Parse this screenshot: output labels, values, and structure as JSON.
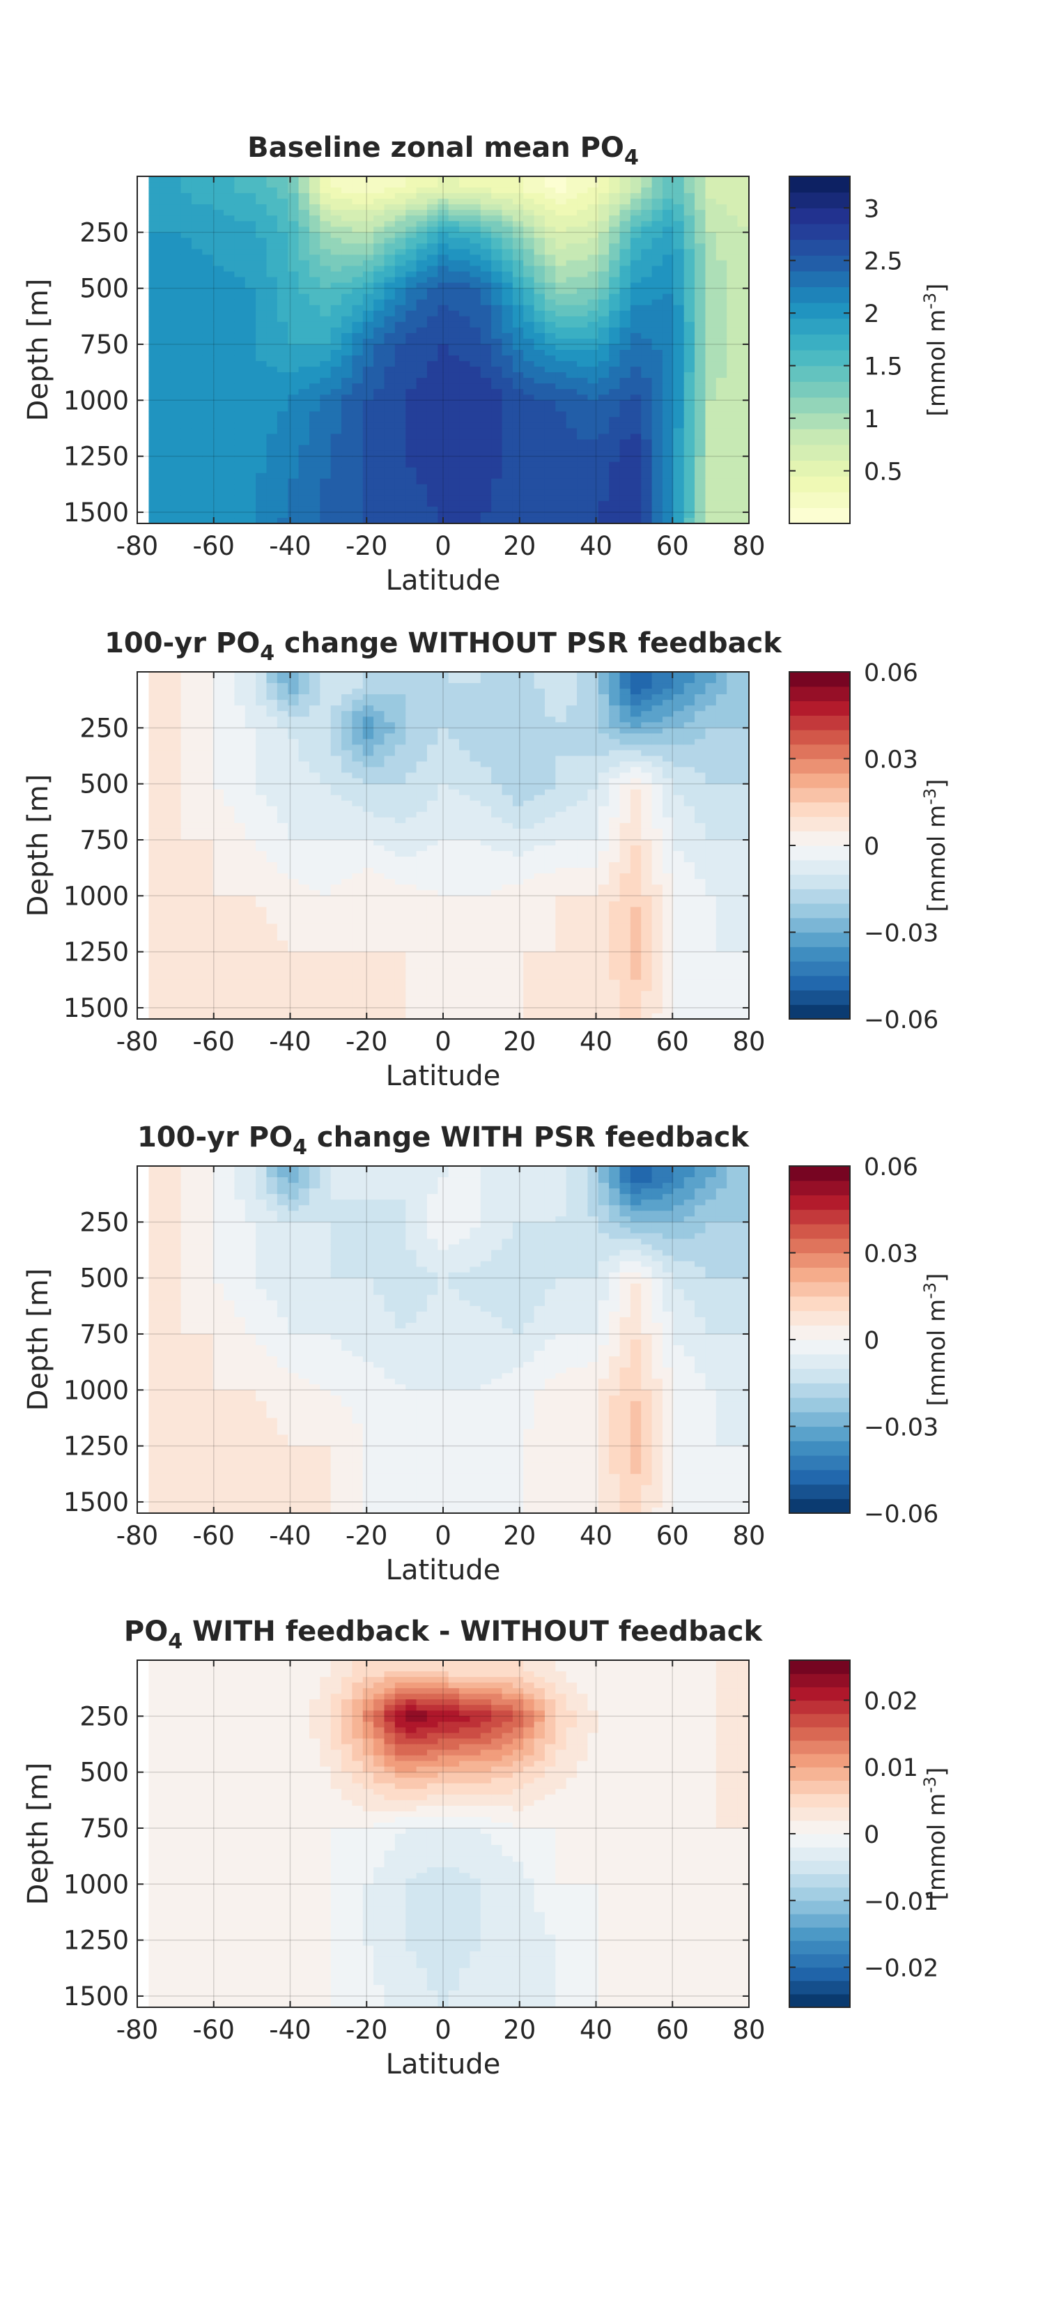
{
  "chart_data": [
    {
      "type": "heatmap",
      "title_parts": [
        "Baseline zonal mean PO",
        "4",
        ""
      ],
      "xlabel": "Latitude",
      "ylabel": "Depth [m]",
      "xlim": [
        -80,
        80
      ],
      "ylim": [
        1550,
        0
      ],
      "xticks": [
        -80,
        -60,
        -40,
        -20,
        0,
        20,
        40,
        60,
        80
      ],
      "yticks": [
        250,
        500,
        750,
        1000,
        1250,
        1500
      ],
      "grid": true,
      "colormap": "YlGnBu",
      "colorbar": {
        "label_main": "[mmol m",
        "label_sup": "-3",
        "label_end": "]",
        "range": [
          0,
          3.3
        ],
        "levels": 22,
        "ticks": [
          0.5,
          1,
          1.5,
          2,
          2.5,
          3
        ],
        "tick_labels": [
          "0.5",
          "1",
          "1.5",
          "2",
          "2.5",
          "3"
        ]
      },
      "field_x": [
        -80,
        -70,
        -60,
        -50,
        -40,
        -30,
        -20,
        -10,
        0,
        10,
        20,
        30,
        40,
        50,
        60,
        70,
        80
      ],
      "field_depth": [
        50,
        250,
        500,
        750,
        1000,
        1250,
        1550
      ],
      "field_values": [
        [
          1.85,
          1.8,
          1.7,
          1.6,
          1.4,
          0.3,
          0.2,
          0.3,
          0.5,
          0.4,
          0.3,
          0.1,
          0.3,
          0.8,
          1.5,
          0.7,
          0.6
        ],
        [
          1.95,
          1.95,
          1.9,
          1.85,
          1.6,
          1.0,
          0.9,
          1.3,
          1.8,
          1.6,
          1.1,
          0.6,
          0.7,
          1.6,
          1.9,
          0.9,
          0.75
        ],
        [
          2.0,
          2.05,
          2.0,
          1.95,
          1.7,
          1.5,
          1.7,
          2.2,
          2.5,
          2.4,
          1.8,
          1.1,
          1.2,
          2.0,
          2.1,
          1.0,
          0.8
        ],
        [
          2.0,
          2.05,
          2.0,
          1.95,
          1.8,
          1.8,
          2.3,
          2.6,
          2.7,
          2.6,
          2.2,
          1.9,
          1.9,
          2.3,
          2.2,
          1.0,
          0.8
        ],
        [
          2.0,
          2.05,
          2.0,
          2.0,
          2.1,
          2.3,
          2.55,
          2.7,
          2.8,
          2.85,
          2.6,
          2.55,
          2.4,
          2.6,
          2.2,
          0.9,
          0.8
        ],
        [
          2.0,
          2.05,
          2.0,
          2.05,
          2.2,
          2.4,
          2.55,
          2.7,
          2.75,
          2.75,
          2.65,
          2.6,
          2.6,
          2.8,
          2.1,
          0.85,
          0.75
        ],
        [
          2.0,
          2.05,
          2.05,
          2.1,
          2.3,
          2.45,
          2.55,
          2.65,
          2.7,
          2.7,
          2.65,
          2.65,
          2.7,
          2.85,
          2.0,
          0.85,
          0.75
        ]
      ]
    },
    {
      "type": "heatmap",
      "title_parts": [
        "100-yr PO",
        "4",
        " change WITHOUT PSR feedback"
      ],
      "xlabel": "Latitude",
      "ylabel": "Depth [m]",
      "xlim": [
        -80,
        80
      ],
      "ylim": [
        1550,
        0
      ],
      "xticks": [
        -80,
        -60,
        -40,
        -20,
        0,
        20,
        40,
        60,
        80
      ],
      "yticks": [
        250,
        500,
        750,
        1000,
        1250,
        1500
      ],
      "grid": true,
      "colormap": "RdBu_r",
      "colorbar": {
        "label_main": "[mmol m",
        "label_sup": "-3",
        "label_end": "]",
        "range": [
          -0.06,
          0.06
        ],
        "levels": 24,
        "ticks": [
          0.06,
          0.03,
          0,
          -0.03,
          -0.06
        ],
        "tick_labels": [
          "0.06",
          "0.03",
          "0",
          "−0.03",
          "−0.06"
        ]
      },
      "field_x": [
        -80,
        -70,
        -60,
        -50,
        -40,
        -30,
        -20,
        -10,
        0,
        10,
        20,
        30,
        40,
        50,
        60,
        70,
        80
      ],
      "field_depth": [
        50,
        250,
        500,
        750,
        1000,
        1250,
        1550
      ],
      "field_values": [
        [
          0.005,
          0.005,
          0.0,
          -0.01,
          -0.03,
          -0.01,
          -0.015,
          -0.02,
          -0.015,
          -0.015,
          -0.02,
          -0.01,
          -0.02,
          -0.05,
          -0.04,
          -0.03,
          -0.02
        ],
        [
          0.005,
          0.005,
          0.0,
          -0.005,
          -0.01,
          -0.015,
          -0.035,
          -0.02,
          -0.015,
          -0.02,
          -0.02,
          -0.015,
          -0.02,
          -0.03,
          -0.025,
          -0.02,
          -0.02
        ],
        [
          0.005,
          0.005,
          0.0,
          -0.005,
          -0.008,
          -0.01,
          -0.015,
          -0.015,
          -0.01,
          -0.012,
          -0.02,
          -0.015,
          -0.01,
          0.005,
          -0.01,
          -0.015,
          -0.015
        ],
        [
          0.005,
          0.005,
          0.005,
          0.0,
          -0.005,
          -0.005,
          -0.005,
          -0.008,
          -0.005,
          -0.005,
          -0.008,
          -0.005,
          -0.005,
          0.01,
          -0.005,
          -0.01,
          -0.01
        ],
        [
          0.005,
          0.005,
          0.005,
          0.005,
          0.002,
          0.0,
          0.005,
          0.002,
          0.0,
          0.0,
          0.002,
          0.005,
          0.005,
          0.015,
          0.0,
          -0.005,
          -0.01
        ],
        [
          0.005,
          0.005,
          0.005,
          0.008,
          0.005,
          0.005,
          0.005,
          0.005,
          0.0,
          0.0,
          0.005,
          0.005,
          0.005,
          0.018,
          0.0,
          -0.005,
          -0.005
        ],
        [
          0.005,
          0.005,
          0.005,
          0.008,
          0.008,
          0.005,
          0.005,
          0.005,
          0.0,
          0.0,
          0.005,
          0.005,
          0.005,
          0.012,
          0.0,
          -0.005,
          -0.005
        ]
      ]
    },
    {
      "type": "heatmap",
      "title_parts": [
        "100-yr PO",
        "4",
        " change WITH PSR feedback"
      ],
      "xlabel": "Latitude",
      "ylabel": "Depth [m]",
      "xlim": [
        -80,
        80
      ],
      "ylim": [
        1550,
        0
      ],
      "xticks": [
        -80,
        -60,
        -40,
        -20,
        0,
        20,
        40,
        60,
        80
      ],
      "yticks": [
        250,
        500,
        750,
        1000,
        1250,
        1500
      ],
      "grid": true,
      "colormap": "RdBu_r",
      "colorbar": {
        "label_main": "[mmol m",
        "label_sup": "-3",
        "label_end": "]",
        "range": [
          -0.06,
          0.06
        ],
        "levels": 24,
        "ticks": [
          0.06,
          0.03,
          0,
          -0.03,
          -0.06
        ],
        "tick_labels": [
          "0.06",
          "0.03",
          "0",
          "−0.03",
          "−0.06"
        ]
      },
      "field_x": [
        -80,
        -70,
        -60,
        -50,
        -40,
        -30,
        -20,
        -10,
        0,
        10,
        20,
        30,
        40,
        50,
        60,
        70,
        80
      ],
      "field_depth": [
        50,
        250,
        500,
        750,
        1000,
        1250,
        1550
      ],
      "field_values": [
        [
          0.005,
          0.005,
          0.0,
          -0.01,
          -0.03,
          -0.01,
          -0.005,
          -0.01,
          -0.005,
          -0.005,
          -0.01,
          -0.005,
          -0.02,
          -0.05,
          -0.04,
          -0.03,
          -0.02
        ],
        [
          0.005,
          0.005,
          0.0,
          -0.005,
          -0.01,
          -0.01,
          -0.015,
          -0.01,
          0.0,
          -0.005,
          -0.01,
          -0.01,
          -0.015,
          -0.025,
          -0.025,
          -0.02,
          -0.02
        ],
        [
          0.005,
          0.005,
          0.0,
          -0.005,
          -0.008,
          -0.01,
          -0.01,
          -0.012,
          -0.01,
          -0.012,
          -0.015,
          -0.01,
          -0.01,
          0.005,
          -0.01,
          -0.015,
          -0.015
        ],
        [
          0.005,
          0.005,
          0.005,
          0.0,
          -0.005,
          -0.005,
          -0.008,
          -0.01,
          -0.008,
          -0.008,
          -0.01,
          -0.005,
          -0.005,
          0.01,
          -0.005,
          -0.01,
          -0.01
        ],
        [
          0.005,
          0.005,
          0.005,
          0.005,
          0.002,
          0.0,
          -0.002,
          -0.005,
          -0.005,
          -0.005,
          -0.002,
          0.002,
          0.005,
          0.015,
          0.0,
          -0.005,
          -0.01
        ],
        [
          0.005,
          0.005,
          0.005,
          0.008,
          0.005,
          0.005,
          0.0,
          -0.002,
          -0.005,
          -0.005,
          0.0,
          0.002,
          0.005,
          0.018,
          0.0,
          -0.005,
          -0.005
        ],
        [
          0.005,
          0.005,
          0.005,
          0.008,
          0.008,
          0.005,
          0.0,
          0.0,
          -0.003,
          -0.003,
          0.0,
          0.002,
          0.005,
          0.012,
          0.0,
          -0.005,
          -0.005
        ]
      ]
    },
    {
      "type": "heatmap",
      "title_parts": [
        "PO",
        "4",
        " WITH feedback - WITHOUT feedback"
      ],
      "xlabel": "Latitude",
      "ylabel": "Depth [m]",
      "xlim": [
        -80,
        80
      ],
      "ylim": [
        1550,
        0
      ],
      "xticks": [
        -80,
        -60,
        -40,
        -20,
        0,
        20,
        40,
        60,
        80
      ],
      "yticks": [
        250,
        500,
        750,
        1000,
        1250,
        1500
      ],
      "grid": true,
      "colormap": "RdBu_r",
      "colorbar": {
        "label_main": "[mmol m",
        "label_sup": "-3",
        "label_end": "]",
        "range": [
          -0.026,
          0.026
        ],
        "levels": 26,
        "ticks": [
          0.02,
          0.01,
          0,
          -0.01,
          -0.02
        ],
        "tick_labels": [
          "0.02",
          "0.01",
          "0",
          "−0.01",
          "−0.02"
        ]
      },
      "field_x": [
        -80,
        -70,
        -60,
        -50,
        -40,
        -30,
        -20,
        -10,
        0,
        10,
        20,
        30,
        40,
        50,
        60,
        70,
        80
      ],
      "field_depth": [
        50,
        250,
        500,
        750,
        1000,
        1250,
        1550
      ],
      "field_values": [
        [
          0.0,
          0.0,
          0.0,
          0.0,
          0.0,
          0.002,
          0.005,
          0.006,
          0.005,
          0.004,
          0.004,
          0.002,
          0.0,
          0.0,
          0.0,
          0.002,
          0.002
        ],
        [
          0.0,
          0.0,
          0.0,
          0.0,
          0.0,
          0.004,
          0.012,
          0.024,
          0.022,
          0.02,
          0.016,
          0.006,
          0.002,
          0.0,
          0.0,
          0.002,
          0.002
        ],
        [
          0.0,
          0.0,
          0.0,
          0.0,
          0.0,
          0.002,
          0.006,
          0.01,
          0.008,
          0.008,
          0.006,
          0.003,
          0.001,
          0.0,
          0.0,
          0.002,
          0.002
        ],
        [
          0.0,
          0.0,
          0.0,
          0.0,
          0.0,
          0.0,
          0.0,
          -0.002,
          -0.002,
          -0.002,
          0.0,
          0.0,
          0.0,
          0.0,
          0.0,
          0.002,
          0.002
        ],
        [
          0.0,
          0.0,
          0.0,
          0.0,
          0.0,
          0.0,
          -0.002,
          -0.004,
          -0.005,
          -0.004,
          -0.003,
          0.0,
          0.0,
          0.0,
          0.0,
          0.002,
          0.0
        ],
        [
          0.0,
          0.0,
          0.0,
          0.0,
          0.0,
          0.0,
          -0.002,
          -0.004,
          -0.005,
          -0.004,
          -0.003,
          -0.002,
          0.0,
          0.0,
          0.0,
          0.002,
          0.0
        ],
        [
          0.0,
          0.0,
          0.0,
          0.0,
          0.0,
          0.0,
          -0.001,
          -0.003,
          -0.004,
          -0.003,
          -0.002,
          -0.002,
          0.0,
          0.0,
          0.0,
          0.0,
          0.0
        ]
      ]
    }
  ]
}
